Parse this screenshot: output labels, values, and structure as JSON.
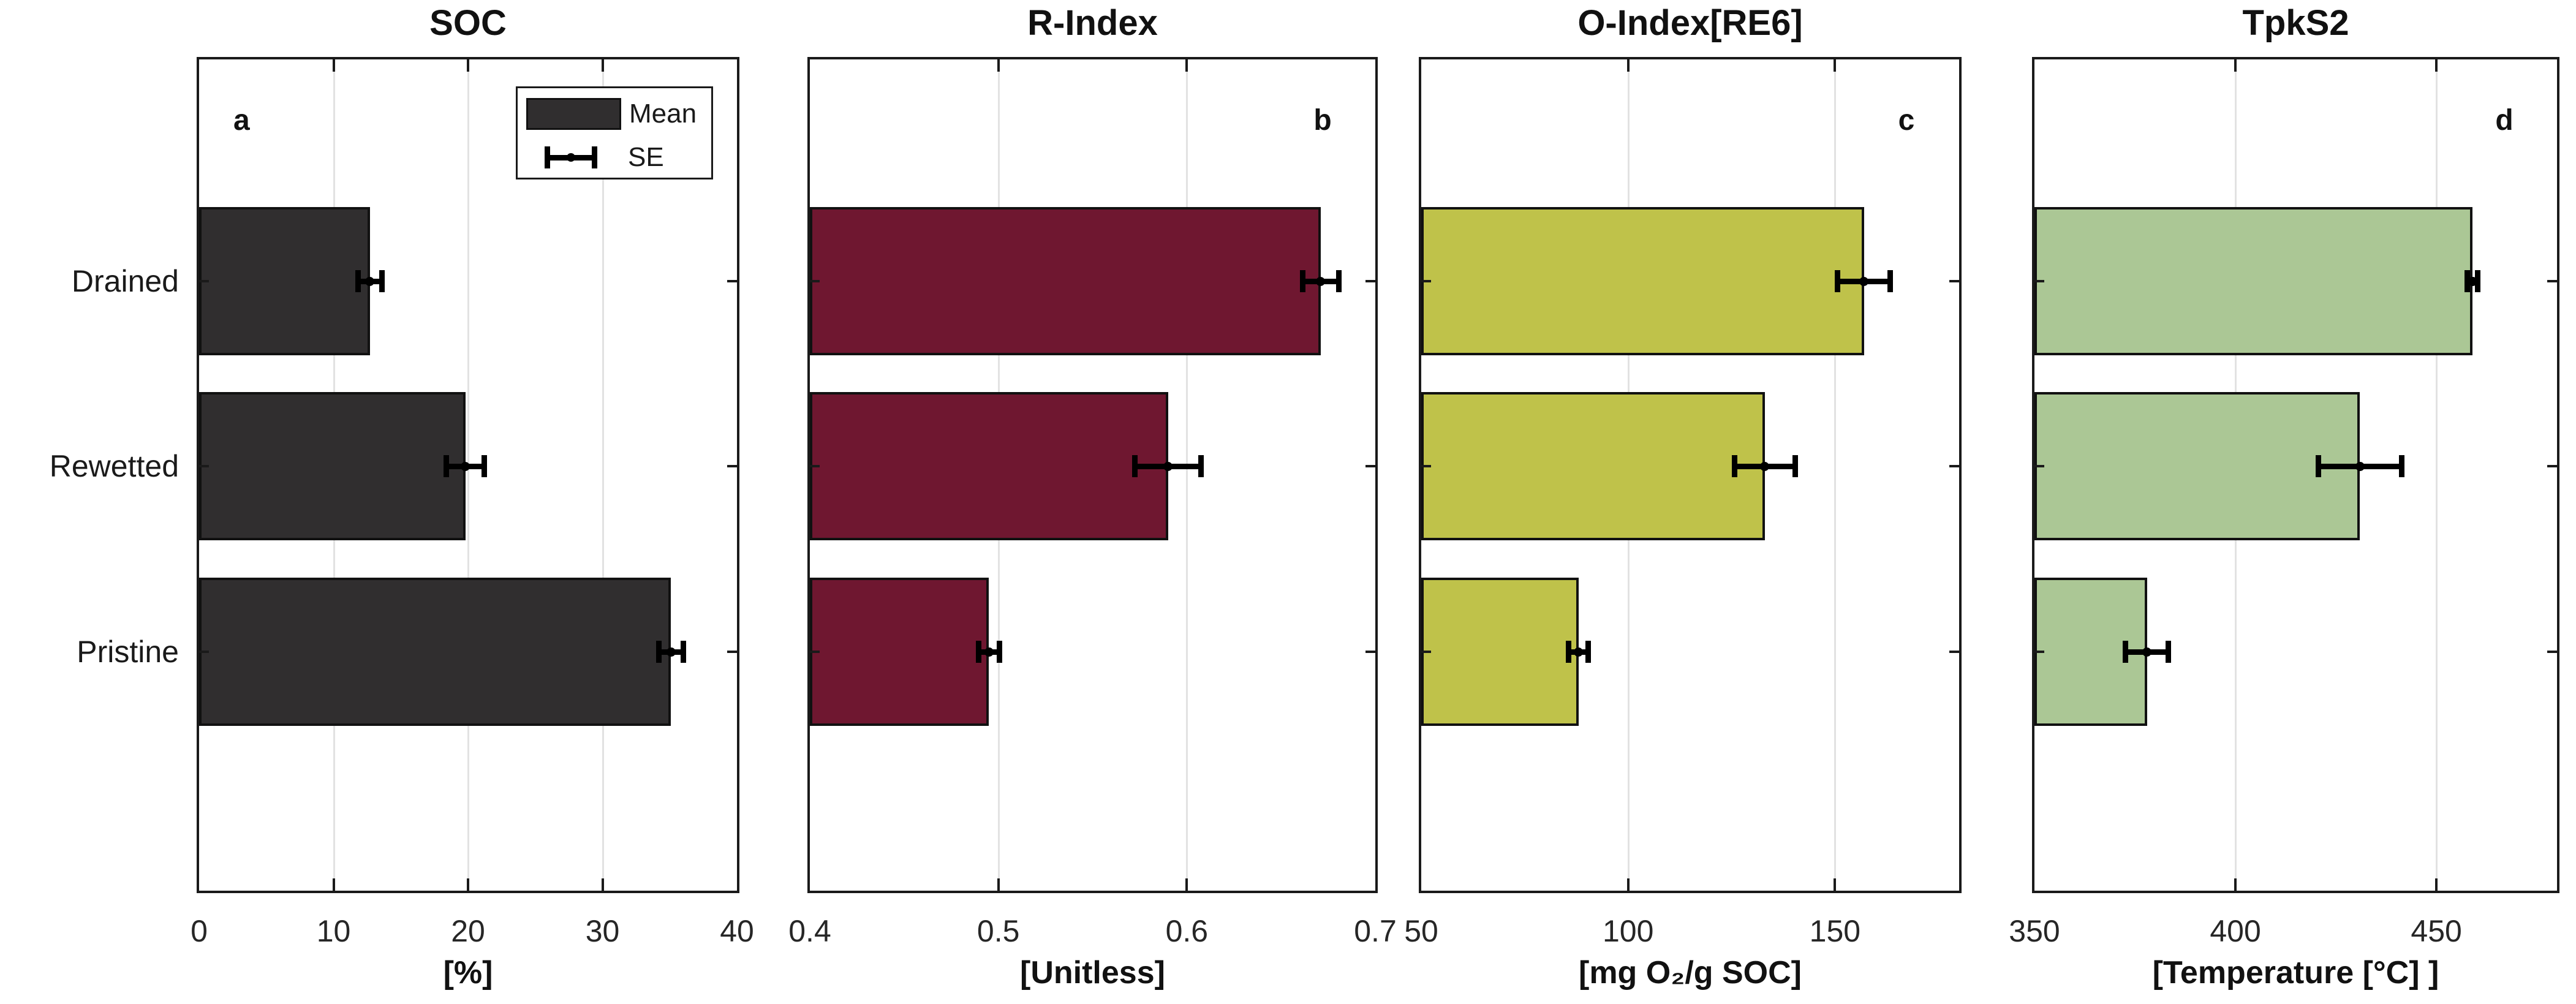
{
  "figure": {
    "background": "#ffffff"
  },
  "y_axis": {
    "categories": [
      "Drained",
      "Rewetted",
      "Pristine"
    ]
  },
  "legend": {
    "items": [
      {
        "type": "bar-swatch",
        "label": "Mean"
      },
      {
        "type": "error-bar",
        "label": "SE"
      }
    ]
  },
  "colors": {
    "axis": "#1a1a1a",
    "grid": "#e2e2e2",
    "bar_outline": "#111111",
    "error_bar": "#000000",
    "soc_bar": "#302e2f",
    "r_index_bar": "#6f1730",
    "o_index_bar": "#bfc24a",
    "tpks2_bar": "#abc795"
  },
  "chart_data": [
    {
      "type": "bar",
      "orientation": "horizontal",
      "panel_letter": "a",
      "title": "SOC",
      "xlabel": "[%]",
      "categories": [
        "Drained",
        "Rewetted",
        "Pristine"
      ],
      "values": [
        12.7,
        19.8,
        35.1
      ],
      "se": [
        1.1,
        1.6,
        1.1
      ],
      "xlim": [
        0,
        40
      ],
      "xticks": [
        0,
        10,
        20,
        30,
        40
      ],
      "xtick_labels": [
        "0",
        "10",
        "20",
        "30",
        "40"
      ],
      "bar_color": "#302e2f",
      "grid": true,
      "legend_position": "top-right",
      "show_category_labels": true
    },
    {
      "type": "bar",
      "orientation": "horizontal",
      "panel_letter": "b",
      "title": "R-Index",
      "xlabel": "[Unitless]",
      "categories": [
        "Drained",
        "Rewetted",
        "Pristine"
      ],
      "values": [
        0.671,
        0.59,
        0.495
      ],
      "se": [
        0.011,
        0.019,
        0.007
      ],
      "xlim": [
        0.4,
        0.7
      ],
      "xticks": [
        0.4,
        0.5,
        0.6,
        0.7
      ],
      "xtick_labels": [
        "0.4",
        "0.5",
        "0.6",
        "0.7"
      ],
      "bar_color": "#6f1730",
      "grid": true,
      "show_category_labels": false
    },
    {
      "type": "bar",
      "orientation": "horizontal",
      "panel_letter": "c",
      "title": "O-Index[RE6]",
      "xlabel": "[mg O₂/g SOC]",
      "categories": [
        "Drained",
        "Rewetted",
        "Pristine"
      ],
      "values": [
        157,
        133,
        88
      ],
      "se": [
        7,
        8,
        3
      ],
      "xlim": [
        50,
        180
      ],
      "xticks": [
        50,
        100,
        150
      ],
      "xtick_labels": [
        "50",
        "100",
        "150"
      ],
      "bar_color": "#bfc24a",
      "grid": true,
      "show_category_labels": false
    },
    {
      "type": "bar",
      "orientation": "horizontal",
      "panel_letter": "d",
      "title": "TpkS2",
      "xlabel": "[Temperature [°C] ]",
      "categories": [
        "Drained",
        "Rewetted",
        "Pristine"
      ],
      "values": [
        459,
        431,
        378
      ],
      "se": [
        2,
        11,
        6
      ],
      "xlim": [
        350,
        480
      ],
      "xticks": [
        350,
        400,
        450
      ],
      "xtick_labels": [
        "350",
        "400",
        "450"
      ],
      "bar_color": "#abc795",
      "grid": true,
      "show_category_labels": false
    }
  ]
}
